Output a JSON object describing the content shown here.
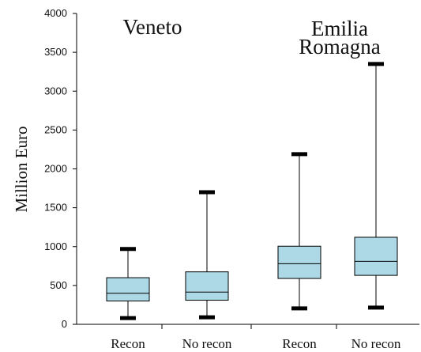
{
  "chart_data": {
    "type": "boxplot",
    "ylabel": "Million Euro",
    "ylim": [
      0,
      4000
    ],
    "yticks": [
      "0",
      "500",
      "1000",
      "1500",
      "2000",
      "2500",
      "3000",
      "3500",
      "4000"
    ],
    "groups": [
      {
        "label": "Veneto",
        "label_lines": [
          "Veneto"
        ]
      },
      {
        "label": "Emilia Romagna",
        "label_lines": [
          "Emilia",
          "Romagna"
        ]
      }
    ],
    "categories": [
      "Recon",
      "No recon",
      "Recon",
      "No recon"
    ],
    "boxes": [
      {
        "group": "Veneto",
        "category": "Recon",
        "min": 80,
        "q1": 300,
        "median": 400,
        "q3": 600,
        "max": 970
      },
      {
        "group": "Veneto",
        "category": "No recon",
        "min": 90,
        "q1": 310,
        "median": 415,
        "q3": 675,
        "max": 1700
      },
      {
        "group": "Emilia Romagna",
        "category": "Recon",
        "min": 205,
        "q1": 590,
        "median": 780,
        "q3": 1005,
        "max": 2190
      },
      {
        "group": "Emilia Romagna",
        "category": "No recon",
        "min": 215,
        "q1": 630,
        "median": 810,
        "q3": 1120,
        "max": 3350
      }
    ],
    "colors": {
      "box_fill": "#add8e6",
      "stroke": "#000000"
    },
    "grid": false
  }
}
